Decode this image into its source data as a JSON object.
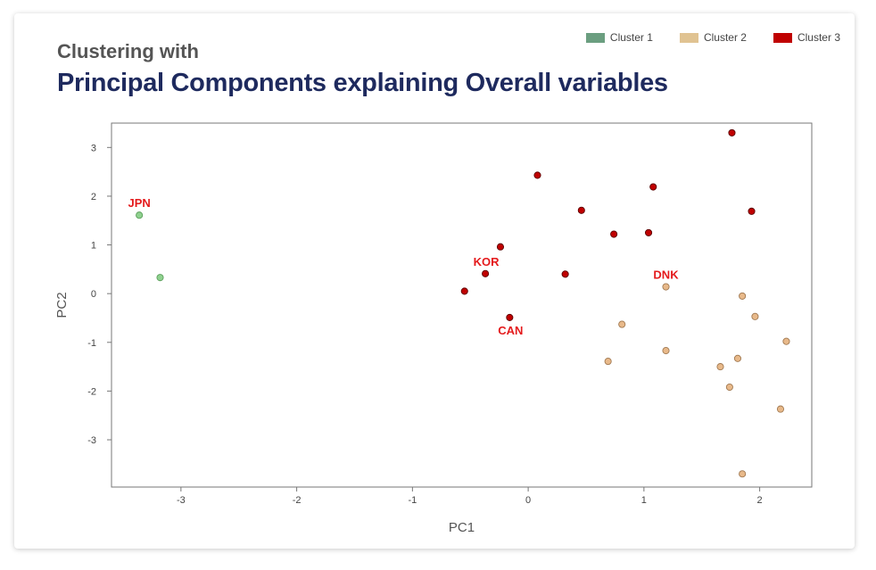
{
  "header": {
    "subtitle": "Clustering with",
    "title": "Principal Components explaining Overall variables"
  },
  "legend": [
    {
      "label": "Cluster 1",
      "color": "#6b9e80"
    },
    {
      "label": "Cluster 2",
      "color": "#e0c392"
    },
    {
      "label": "Cluster 3",
      "color": "#c00000"
    }
  ],
  "chart_data": {
    "type": "scatter",
    "xlabel": "PC1",
    "ylabel": "PC2",
    "xlim": [
      -3.6,
      2.45
    ],
    "ylim": [
      -3.97,
      3.5
    ],
    "xticks": [
      -3,
      -2,
      -1,
      0,
      1,
      2
    ],
    "yticks": [
      3,
      2,
      1,
      0,
      -1,
      -2,
      -3
    ],
    "grid": false,
    "legend_position": "top-right",
    "series": [
      {
        "name": "Cluster 1",
        "fill": "#8fd18f",
        "stroke": "#5a9e5a",
        "points": [
          {
            "x": -3.36,
            "y": 1.61,
            "label": "JPN"
          },
          {
            "x": -3.18,
            "y": 0.33,
            "label": ""
          }
        ]
      },
      {
        "name": "Cluster 2",
        "fill": "#e8b98a",
        "stroke": "#a07850",
        "points": [
          {
            "x": 1.19,
            "y": 0.14,
            "label": "DNK"
          },
          {
            "x": 1.85,
            "y": -0.05,
            "label": ""
          },
          {
            "x": 1.96,
            "y": -0.47,
            "label": ""
          },
          {
            "x": 2.23,
            "y": -0.98,
            "label": ""
          },
          {
            "x": 0.81,
            "y": -0.63,
            "label": ""
          },
          {
            "x": 1.19,
            "y": -1.17,
            "label": ""
          },
          {
            "x": 0.69,
            "y": -1.39,
            "label": ""
          },
          {
            "x": 1.66,
            "y": -1.5,
            "label": ""
          },
          {
            "x": 1.81,
            "y": -1.33,
            "label": ""
          },
          {
            "x": 1.74,
            "y": -1.92,
            "label": ""
          },
          {
            "x": 2.18,
            "y": -2.37,
            "label": ""
          },
          {
            "x": 1.85,
            "y": -3.7,
            "label": ""
          }
        ]
      },
      {
        "name": "Cluster 3",
        "fill": "#c00000",
        "stroke": "#5a0000",
        "points": [
          {
            "x": 1.76,
            "y": 3.3,
            "label": ""
          },
          {
            "x": 0.08,
            "y": 2.43,
            "label": ""
          },
          {
            "x": 1.08,
            "y": 2.19,
            "label": ""
          },
          {
            "x": 0.46,
            "y": 1.71,
            "label": ""
          },
          {
            "x": 1.93,
            "y": 1.69,
            "label": ""
          },
          {
            "x": 0.74,
            "y": 1.22,
            "label": ""
          },
          {
            "x": 1.04,
            "y": 1.25,
            "label": ""
          },
          {
            "x": -0.24,
            "y": 0.96,
            "label": ""
          },
          {
            "x": -0.37,
            "y": 0.41,
            "label": "KOR"
          },
          {
            "x": 0.32,
            "y": 0.4,
            "label": ""
          },
          {
            "x": -0.55,
            "y": 0.05,
            "label": ""
          },
          {
            "x": -0.16,
            "y": -0.49,
            "label": "CAN"
          }
        ]
      }
    ]
  }
}
